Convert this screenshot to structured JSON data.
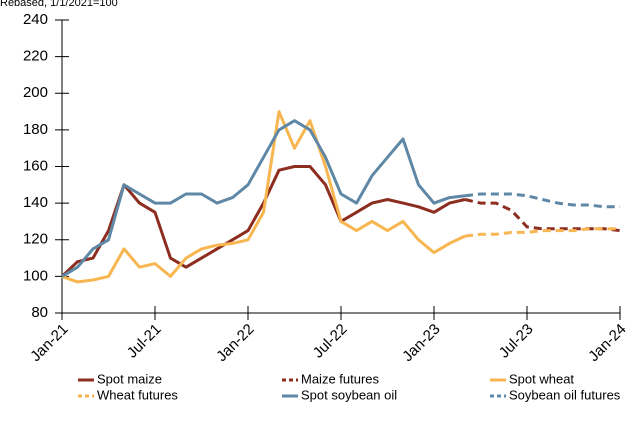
{
  "chart_data": {
    "type": "line",
    "y_axis_label": "Rebased, 1/1/2021=100",
    "x": [
      "Jan-21",
      "Feb-21",
      "Mar-21",
      "Apr-21",
      "May-21",
      "Jun-21",
      "Jul-21",
      "Aug-21",
      "Sep-21",
      "Oct-21",
      "Nov-21",
      "Dec-21",
      "Jan-22",
      "Feb-22",
      "Mar-22",
      "Apr-22",
      "May-22",
      "Jun-22",
      "Jul-22",
      "Aug-22",
      "Sep-22",
      "Oct-22",
      "Nov-22",
      "Dec-22",
      "Jan-23",
      "Feb-23",
      "Mar-23",
      "Apr-23",
      "May-23",
      "Jun-23",
      "Jul-23",
      "Aug-23",
      "Sep-23",
      "Oct-23",
      "Nov-23",
      "Dec-23",
      "Jan-24"
    ],
    "xticks": [
      "Jan-21",
      "Jul-21",
      "Jan-22",
      "Jul-22",
      "Jan-23",
      "Jul-23",
      "Jan-24"
    ],
    "ylim": [
      80,
      240
    ],
    "yticks": [
      80,
      100,
      120,
      140,
      160,
      180,
      200,
      220,
      240
    ],
    "series": [
      {
        "name": "Spot maize",
        "color": "#8c2d1f",
        "dashed": false,
        "values": [
          100,
          108,
          110,
          125,
          150,
          140,
          135,
          110,
          105,
          110,
          115,
          120,
          125,
          140,
          158,
          160,
          160,
          150,
          130,
          135,
          140,
          142,
          140,
          138,
          135,
          140,
          142,
          null,
          null,
          null,
          null,
          null,
          null,
          null,
          null,
          null,
          null
        ]
      },
      {
        "name": "Maize futures",
        "color": "#8c2d1f",
        "dashed": true,
        "values": [
          null,
          null,
          null,
          null,
          null,
          null,
          null,
          null,
          null,
          null,
          null,
          null,
          null,
          null,
          null,
          null,
          null,
          null,
          null,
          null,
          null,
          null,
          null,
          null,
          null,
          null,
          142,
          140,
          140,
          136,
          127,
          126,
          126,
          126,
          126,
          126,
          125
        ]
      },
      {
        "name": "Spot wheat",
        "color": "#f7b650",
        "dashed": false,
        "values": [
          100,
          97,
          98,
          100,
          115,
          105,
          107,
          100,
          110,
          115,
          117,
          118,
          120,
          135,
          190,
          170,
          185,
          160,
          130,
          125,
          130,
          125,
          130,
          120,
          113,
          118,
          122,
          null,
          null,
          null,
          null,
          null,
          null,
          null,
          null,
          null,
          null
        ]
      },
      {
        "name": "Wheat futures",
        "color": "#f7b650",
        "dashed": true,
        "values": [
          null,
          null,
          null,
          null,
          null,
          null,
          null,
          null,
          null,
          null,
          null,
          null,
          null,
          null,
          null,
          null,
          null,
          null,
          null,
          null,
          null,
          null,
          null,
          null,
          null,
          null,
          122,
          123,
          123,
          124,
          124,
          125,
          125,
          125,
          126,
          126,
          126
        ]
      },
      {
        "name": "Spot soybean oil",
        "color": "#5f88a6",
        "dashed": false,
        "values": [
          100,
          105,
          115,
          120,
          150,
          145,
          140,
          140,
          145,
          145,
          140,
          143,
          150,
          165,
          180,
          185,
          180,
          165,
          145,
          140,
          155,
          165,
          175,
          150,
          140,
          143,
          144,
          null,
          null,
          null,
          null,
          null,
          null,
          null,
          null,
          null,
          null
        ]
      },
      {
        "name": "Soybean oil futures",
        "color": "#5f88a6",
        "dashed": true,
        "values": [
          null,
          null,
          null,
          null,
          null,
          null,
          null,
          null,
          null,
          null,
          null,
          null,
          null,
          null,
          null,
          null,
          null,
          null,
          null,
          null,
          null,
          null,
          null,
          null,
          null,
          null,
          144,
          145,
          145,
          145,
          144,
          142,
          140,
          139,
          139,
          138,
          138
        ]
      }
    ]
  }
}
